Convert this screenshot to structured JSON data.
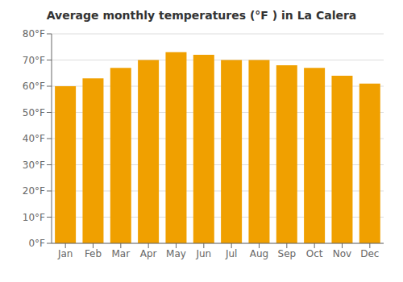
{
  "chart_data": {
    "type": "bar",
    "title": "Average monthly temperatures (°F ) in La Calera",
    "categories": [
      "Jan",
      "Feb",
      "Mar",
      "Apr",
      "May",
      "Jun",
      "Jul",
      "Aug",
      "Sep",
      "Oct",
      "Nov",
      "Dec"
    ],
    "values": [
      60,
      63,
      67,
      70,
      73,
      72,
      70,
      70,
      68,
      67,
      64,
      61
    ],
    "color": "#F0A000",
    "ylim": [
      0,
      80
    ],
    "yticks": [
      {
        "value": 0,
        "label": "0°F"
      },
      {
        "value": 10,
        "label": "10°F"
      },
      {
        "value": 20,
        "label": "20°F"
      },
      {
        "value": 30,
        "label": "30°F"
      },
      {
        "value": 40,
        "label": "40°F"
      },
      {
        "value": 50,
        "label": "50°F"
      },
      {
        "value": 60,
        "label": "60°F"
      },
      {
        "value": 70,
        "label": "70°F"
      },
      {
        "value": 80,
        "label": "80°F"
      }
    ],
    "grid": true
  }
}
